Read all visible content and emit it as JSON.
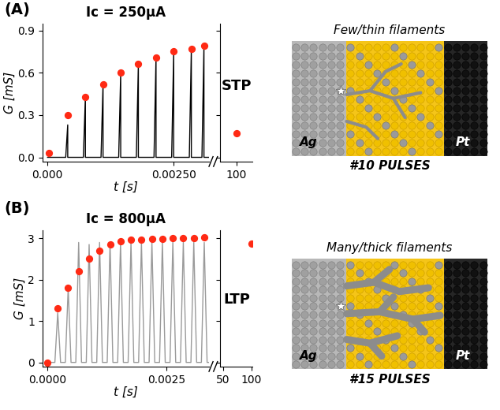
{
  "chart_data": [
    {
      "type": "line",
      "panel": "(A)",
      "title": "Ic = 250μA",
      "annotation": "STP",
      "xlabel": "t [s]",
      "ylabel": "G [mS]",
      "xlim": [
        -0.0001,
        0.0032
      ],
      "xticks": [
        {
          "value": 0,
          "label": "0.000"
        },
        {
          "value": 0.0025,
          "label": "0.00250"
        }
      ],
      "ylim": [
        -0.03,
        0.95
      ],
      "yticks": [
        0.0,
        0.3,
        0.6,
        0.9
      ],
      "series": [
        {
          "type": "line",
          "color": "#000000",
          "x": [
            0,
            0.00036,
            0.0004,
            0.0004,
            0.00071,
            0.00075,
            0.00075,
            0.00106,
            0.0011,
            0.0011,
            0.00141,
            0.00145,
            0.00145,
            0.00176,
            0.0018,
            0.0018,
            0.00211,
            0.00215,
            0.00215,
            0.00246,
            0.0025,
            0.0025,
            0.00281,
            0.00285,
            0.00285,
            0.00306,
            0.0031,
            0.0031,
            0.0032
          ],
          "values": [
            0,
            0,
            0.23,
            0,
            0,
            0.43,
            0,
            0,
            0.52,
            0,
            0,
            0.6,
            0,
            0,
            0.66,
            0,
            0,
            0.71,
            0,
            0,
            0.75,
            0,
            0,
            0.77,
            0,
            0,
            0.79,
            0,
            0
          ]
        },
        {
          "type": "scatter",
          "color": "#ff2a14",
          "marker": "o",
          "x": [
            3e-05,
            0.0004,
            0.00075,
            0.0011,
            0.00145,
            0.0018,
            0.00215,
            0.0025,
            0.00285,
            0.0031
          ],
          "values": [
            0.03,
            0.3,
            0.43,
            0.52,
            0.6,
            0.66,
            0.71,
            0.75,
            0.77,
            0.79
          ]
        }
      ]
    },
    {
      "type": "scatter",
      "xlim": [
        99,
        101
      ],
      "xticks": [
        100
      ],
      "ylim": [
        -0.03,
        0.95
      ],
      "yticks": [
        0.0,
        0.3,
        0.6,
        0.9
      ],
      "tick_labels": "x",
      "series": [
        {
          "type": "scatter",
          "color": "#ff2a14",
          "marker": "o",
          "x": [
            100
          ],
          "values": [
            0.17
          ]
        }
      ]
    },
    {
      "type": "line",
      "panel": "(B)",
      "title": "Ic = 800μA",
      "annotation": "LTP",
      "xlabel": "t [s]",
      "ylabel": "G [mS]",
      "xlim": [
        -0.0001,
        0.0034
      ],
      "xticks": [
        {
          "value": 0,
          "label": "0.0000"
        },
        {
          "value": 0.0025,
          "label": "0.0025"
        }
      ],
      "ylim": [
        -0.1,
        3.2
      ],
      "yticks": [
        0,
        1,
        2,
        3
      ],
      "series": [
        {
          "type": "line",
          "color": "#9a9a9a",
          "x": [
            0,
            0.00016,
            0.00022,
            0.00028,
            0.00038,
            0.00044,
            0.0005,
            0.0006,
            0.00066,
            0.00072,
            0.00082,
            0.00088,
            0.00094,
            0.00104,
            0.0011,
            0.00116,
            0.00126,
            0.00132,
            0.00138,
            0.00148,
            0.00154,
            0.0016,
            0.0017,
            0.00176,
            0.00182,
            0.00192,
            0.00198,
            0.00204,
            0.00214,
            0.0022,
            0.00226,
            0.00236,
            0.00242,
            0.00248,
            0.00258,
            0.00264,
            0.0027,
            0.0028,
            0.00286,
            0.00292,
            0.00302,
            0.00308,
            0.00314,
            0.00324,
            0.0033,
            0.00336,
            0.0034
          ],
          "values": [
            0,
            0,
            1.2,
            0,
            0,
            1.8,
            0,
            0,
            2.9,
            0,
            0,
            2.85,
            0,
            0,
            2.9,
            0,
            0,
            2.9,
            0,
            0,
            2.9,
            0,
            0,
            2.9,
            0,
            0,
            2.9,
            0,
            0,
            2.9,
            0,
            0,
            2.9,
            0,
            0,
            2.9,
            0,
            0,
            2.9,
            0,
            0,
            2.9,
            0,
            0,
            2.9,
            0,
            0
          ]
        },
        {
          "type": "scatter",
          "color": "#ff2a14",
          "marker": "o",
          "x": [
            0,
            0.00022,
            0.00044,
            0.00066,
            0.00088,
            0.0011,
            0.00132,
            0.00154,
            0.00176,
            0.00198,
            0.0022,
            0.00242,
            0.00264,
            0.00286,
            0.00308,
            0.0033
          ],
          "values": [
            0,
            1.3,
            1.8,
            2.2,
            2.5,
            2.7,
            2.85,
            2.93,
            2.96,
            2.97,
            2.98,
            2.99,
            3.0,
            3.0,
            3.01,
            3.02
          ]
        }
      ]
    },
    {
      "type": "scatter",
      "xlim": [
        45,
        102
      ],
      "xticks": [
        50,
        100
      ],
      "ylim": [
        -0.1,
        3.2
      ],
      "yticks": [
        0,
        1,
        2,
        3
      ],
      "tick_labels": "x",
      "series": [
        {
          "type": "scatter",
          "color": "#ff2a14",
          "marker": "o",
          "x": [
            100
          ],
          "values": [
            2.88
          ]
        }
      ]
    }
  ],
  "diagrams": [
    {
      "caption": "Few/thin filaments",
      "pulses": "#10 PULSES",
      "left_electrode": "Ag",
      "right_electrode": "Pt"
    },
    {
      "caption": "Many/thick filaments",
      "pulses": "#15 PULSES",
      "left_electrode": "Ag",
      "right_electrode": "Pt"
    }
  ]
}
